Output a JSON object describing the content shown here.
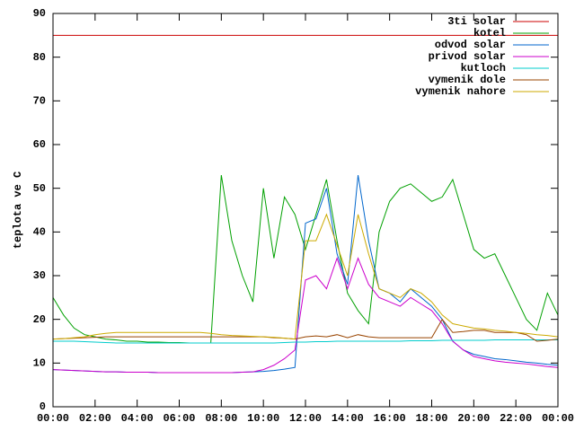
{
  "chart_data": {
    "type": "line",
    "ylabel": "teplota ve C",
    "x": [
      0,
      0.5,
      1,
      1.5,
      2,
      2.5,
      3,
      3.5,
      4,
      4.5,
      5,
      5.5,
      6,
      6.5,
      7,
      7.5,
      8,
      8.5,
      9,
      9.5,
      10,
      10.5,
      11,
      11.5,
      12,
      12.5,
      13,
      13.5,
      14,
      14.5,
      15,
      15.5,
      16,
      16.5,
      17,
      17.5,
      18,
      18.5,
      19,
      19.5,
      20,
      20.5,
      21,
      21.5,
      22,
      22.5,
      23,
      23.5,
      24
    ],
    "xlim": [
      0,
      24
    ],
    "xticks": [
      {
        "value": 0,
        "label": "00:00"
      },
      {
        "value": 2,
        "label": "02:00"
      },
      {
        "value": 4,
        "label": "04:00"
      },
      {
        "value": 6,
        "label": "06:00"
      },
      {
        "value": 8,
        "label": "08:00"
      },
      {
        "value": 10,
        "label": "10:00"
      },
      {
        "value": 12,
        "label": "12:00"
      },
      {
        "value": 14,
        "label": "14:00"
      },
      {
        "value": 16,
        "label": "16:00"
      },
      {
        "value": 18,
        "label": "18:00"
      },
      {
        "value": 20,
        "label": "20:00"
      },
      {
        "value": 22,
        "label": "22:00"
      },
      {
        "value": 24,
        "label": "00:00"
      }
    ],
    "ylim": [
      0,
      90
    ],
    "yticks": [
      0,
      10,
      20,
      30,
      40,
      50,
      60,
      70,
      80,
      90
    ],
    "legend": "top-right",
    "series": [
      {
        "name": "3ti solar",
        "color": "#cc0000",
        "values": [
          85,
          85,
          85,
          85,
          85,
          85,
          85,
          85,
          85,
          85,
          85,
          85,
          85,
          85,
          85,
          85,
          85,
          85,
          85,
          85,
          85,
          85,
          85,
          85,
          85,
          85,
          85,
          85,
          85,
          85,
          85,
          85,
          85,
          85,
          85,
          85,
          85,
          85,
          85,
          85,
          85,
          85,
          85,
          85,
          85,
          85,
          85,
          85,
          85
        ]
      },
      {
        "name": "kotel",
        "color": "#00a000",
        "values": [
          25,
          21,
          18,
          16.5,
          16,
          15.5,
          15.3,
          15,
          15,
          14.8,
          14.8,
          14.7,
          14.7,
          14.6,
          14.6,
          14.6,
          53,
          38,
          30,
          24,
          50,
          34,
          48,
          44,
          36,
          44,
          52,
          38,
          26,
          22,
          19,
          40,
          47,
          50,
          51,
          49,
          47,
          48,
          52,
          44,
          36,
          34,
          35,
          30,
          25,
          20,
          17.5,
          26,
          21
        ]
      },
      {
        "name": "odvod solar",
        "color": "#0066cc",
        "values": [
          8.5,
          8.4,
          8.3,
          8.2,
          8.1,
          8,
          8,
          7.9,
          7.9,
          7.9,
          7.8,
          7.8,
          7.8,
          7.8,
          7.8,
          7.8,
          7.8,
          7.8,
          7.9,
          8,
          8.1,
          8.3,
          8.6,
          9,
          42,
          43,
          50,
          35,
          28,
          53,
          38,
          27,
          26,
          24,
          27,
          25,
          23,
          20,
          15,
          13,
          12,
          11.5,
          11,
          10.8,
          10.5,
          10.2,
          10,
          9.7,
          9.5
        ]
      },
      {
        "name": "privod solar",
        "color": "#cc00cc",
        "values": [
          8.5,
          8.4,
          8.3,
          8.2,
          8.1,
          8,
          8,
          7.9,
          7.9,
          7.9,
          7.8,
          7.8,
          7.8,
          7.8,
          7.8,
          7.8,
          7.8,
          7.8,
          7.9,
          8,
          8.5,
          9.5,
          11,
          13,
          29,
          30,
          27,
          34,
          27,
          34,
          28,
          25,
          24,
          23,
          25,
          23.5,
          22,
          19,
          15,
          13,
          11.5,
          11,
          10.5,
          10.2,
          10,
          9.8,
          9.5,
          9.2,
          9
        ]
      },
      {
        "name": "kutloch",
        "color": "#00cccc",
        "values": [
          15,
          15,
          15,
          14.9,
          14.8,
          14.7,
          14.6,
          14.6,
          14.6,
          14.6,
          14.6,
          14.6,
          14.6,
          14.6,
          14.6,
          14.6,
          14.6,
          14.6,
          14.6,
          14.6,
          14.6,
          14.6,
          14.7,
          14.8,
          14.8,
          14.9,
          14.9,
          15,
          15,
          15,
          15,
          15,
          15,
          15,
          15.1,
          15.1,
          15.1,
          15.2,
          15.2,
          15.2,
          15.2,
          15.2,
          15.3,
          15.3,
          15.3,
          15.3,
          15.3,
          15.3,
          15.3
        ]
      },
      {
        "name": "vymenik dole",
        "color": "#994400",
        "values": [
          15.5,
          15.6,
          15.7,
          15.8,
          15.9,
          16,
          16,
          16,
          16,
          16,
          16,
          16,
          16,
          16,
          16,
          16,
          16,
          16,
          16,
          16,
          16,
          15.8,
          15.7,
          15.5,
          16,
          16.2,
          16,
          16.5,
          15.8,
          16.5,
          16,
          15.8,
          15.8,
          15.8,
          15.8,
          15.8,
          15.8,
          20,
          17,
          17.2,
          17.5,
          17.5,
          17,
          17,
          17,
          16.5,
          15,
          15.2,
          15.5
        ]
      },
      {
        "name": "vymenik nahore",
        "color": "#ccaa00",
        "values": [
          15.5,
          15.6,
          15.8,
          16,
          16.5,
          16.8,
          17,
          17,
          17,
          17,
          17,
          17,
          17,
          17,
          17,
          16.8,
          16.5,
          16.3,
          16.2,
          16.1,
          16,
          15.9,
          15.7,
          15.5,
          38,
          38,
          44,
          37,
          30,
          44,
          35,
          27,
          26,
          25,
          27,
          26,
          24,
          21,
          19,
          18.5,
          18,
          17.8,
          17.5,
          17.3,
          17,
          16.8,
          16.5,
          16.3,
          16
        ]
      }
    ]
  }
}
